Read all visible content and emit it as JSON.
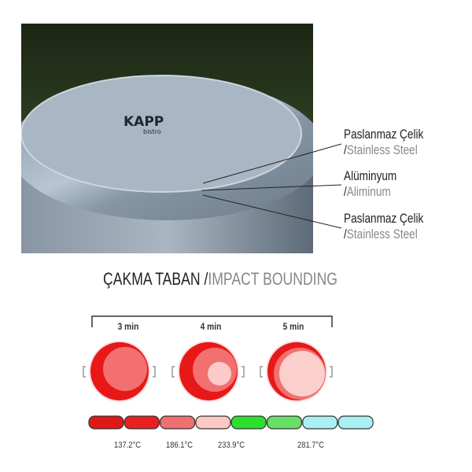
{
  "photo": {
    "brand_logo": "KAPP",
    "brand_sub": "bistro"
  },
  "layers": [
    {
      "name": "Paslanmaz Çelik",
      "slash": "/",
      "translation": "Stainless Steel"
    },
    {
      "name": "Alüminyum",
      "slash": "/",
      "translation": "Aliminum"
    },
    {
      "name": "Paslanmaz Çelik",
      "slash": "/",
      "translation": "Stainless Steel"
    }
  ],
  "title": {
    "main": "ÇAKMA TABAN",
    "slash": "/",
    "sub": "IMPACT BOUNDING"
  },
  "times": [
    "3 min",
    "4 min",
    "5 min"
  ],
  "scale_colors": [
    "#e01818",
    "#e82020",
    "#f07070",
    "#fbc8c4",
    "#2ee02e",
    "#66e066",
    "#a8f0f4",
    "#a8f0f4"
  ],
  "temperatures": [
    "137.2°C",
    "186.1°C",
    "233.9°C",
    "281.7°C"
  ]
}
